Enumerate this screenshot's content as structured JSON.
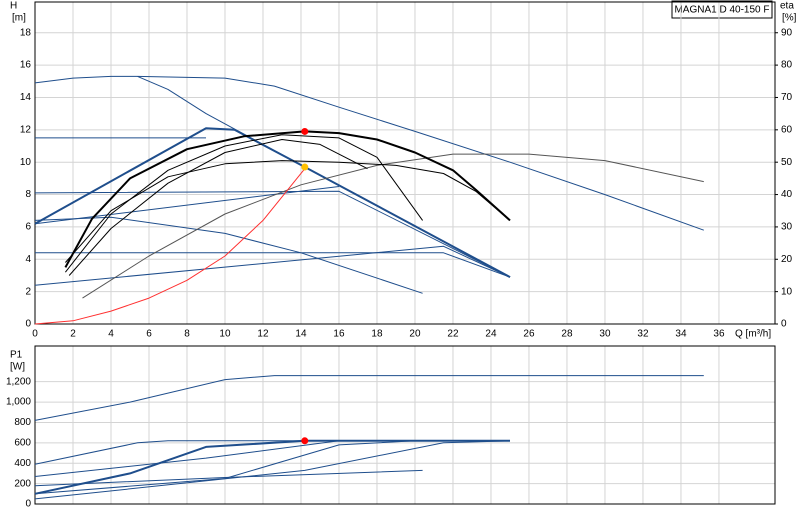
{
  "chart_data": [
    {
      "type": "line",
      "title": "MAGNA1 D 40-150 F",
      "ylabel": "H",
      "yunit": "[m]",
      "y2label": "eta",
      "y2unit": "[%]",
      "xlabel": "Q [m³/h]",
      "xlim": [
        0,
        38.95
      ],
      "ylim": [
        0,
        19.9
      ],
      "y2lim": [
        0,
        99.5
      ],
      "xticks": [
        0,
        2,
        4,
        6,
        8,
        10,
        12,
        14,
        16,
        18,
        20,
        22,
        24,
        26,
        28,
        30,
        32,
        34,
        36
      ],
      "yticks": [
        0,
        2,
        4,
        6,
        8,
        10,
        12,
        14,
        16,
        18
      ],
      "y2ticks": [
        0,
        10,
        20,
        30,
        40,
        50,
        60,
        70,
        80,
        90
      ],
      "grid": true,
      "series": [
        {
          "color": "#1f4e8c",
          "width": 1,
          "x": [
            0,
            2,
            4,
            5.4,
            10,
            12.6,
            16,
            20,
            25,
            30,
            35.2
          ],
          "values": [
            14.9,
            15.2,
            15.3,
            15.3,
            15.2,
            14.7,
            13.4,
            11.9,
            10,
            8,
            5.8
          ]
        },
        {
          "color": "#1f4e8c",
          "width": 1,
          "x": [
            5.4,
            7,
            9,
            14.2,
            25
          ],
          "values": [
            15.3,
            14.5,
            13,
            9.7,
            2.9
          ]
        },
        {
          "color": "#1f4e8c",
          "width": 2,
          "x": [
            0,
            9,
            10.5,
            14.2,
            25
          ],
          "values": [
            6.2,
            12.1,
            12,
            9.7,
            2.9
          ]
        },
        {
          "color": "#1f4e8c",
          "width": 1,
          "x": [
            0,
            9
          ],
          "values": [
            11.5,
            11.5
          ]
        },
        {
          "color": "#1f4e8c",
          "width": 1,
          "x": [
            0,
            16,
            25
          ],
          "values": [
            8.1,
            8.2,
            2.9
          ]
        },
        {
          "color": "#1f4e8c",
          "width": 1,
          "x": [
            0,
            16
          ],
          "values": [
            6.2,
            8.5
          ]
        },
        {
          "color": "#1f4e8c",
          "width": 1,
          "x": [
            0,
            21.5,
            25
          ],
          "values": [
            4.4,
            4.4,
            2.9
          ]
        },
        {
          "color": "#1f4e8c",
          "width": 1,
          "x": [
            0,
            21.5,
            25
          ],
          "values": [
            2.4,
            4.8,
            2.9
          ]
        },
        {
          "color": "#1f4e8c",
          "width": 1,
          "x": [
            0,
            4,
            10,
            14,
            20.4
          ],
          "values": [
            6.4,
            6.6,
            5.6,
            4.4,
            1.9
          ]
        },
        {
          "color": "#555555",
          "width": 1,
          "axis": "y2",
          "x": [
            2.5,
            6,
            10,
            14,
            18,
            22,
            26,
            30,
            35.2
          ],
          "values": [
            8,
            21,
            34,
            43,
            49,
            52.5,
            52.5,
            50.5,
            44
          ]
        },
        {
          "color": "#ff3030",
          "width": 1,
          "axis": "y2",
          "x": [
            0,
            2,
            4,
            6,
            8,
            10,
            12,
            14.2
          ],
          "values": [
            0,
            1,
            4,
            8,
            13.5,
            21,
            32,
            48
          ]
        },
        {
          "color": "#000000",
          "width": 2,
          "x": [
            1.6,
            3,
            5,
            8,
            11,
            14.2,
            16,
            18,
            20,
            22,
            23.2,
            25
          ],
          "values": [
            3.5,
            6.5,
            9,
            10.8,
            11.6,
            11.9,
            11.8,
            11.4,
            10.6,
            9.5,
            8.3,
            6.4
          ]
        },
        {
          "color": "#000000",
          "width": 1,
          "x": [
            1.6,
            4,
            7,
            10,
            13,
            16,
            18,
            20.4
          ],
          "values": [
            3.2,
            6.8,
            9.5,
            11,
            11.7,
            11.5,
            10.3,
            6.4
          ]
        },
        {
          "color": "#000000",
          "width": 1,
          "x": [
            1.6,
            4,
            7,
            10,
            13,
            16,
            19,
            21.5,
            23.2,
            25
          ],
          "values": [
            3.8,
            7,
            9.1,
            9.9,
            10.1,
            10,
            9.8,
            9.3,
            8.2,
            6.4
          ]
        },
        {
          "color": "#000000",
          "width": 1,
          "x": [
            1.8,
            4,
            7,
            10,
            13,
            15,
            17.5
          ],
          "values": [
            3.0,
            5.9,
            8.7,
            10.6,
            11.4,
            11.1,
            9.6
          ]
        }
      ],
      "markers": [
        {
          "x": 14.2,
          "y": 11.9,
          "color": "#ff0000"
        },
        {
          "x": 14.2,
          "y": 9.7,
          "color": "#ffc000"
        }
      ]
    },
    {
      "type": "line",
      "ylabel": "P1",
      "yunit": "[W]",
      "xlim": [
        0,
        38.95
      ],
      "ylim": [
        0,
        1550
      ],
      "xticks": [
        0,
        2,
        4,
        6,
        8,
        10,
        12,
        14,
        16,
        18,
        20,
        22,
        24,
        26,
        28,
        30,
        32,
        34,
        36
      ],
      "yticks": [
        0,
        200,
        400,
        600,
        800,
        {
          "value": 1000,
          "label": "1,000"
        },
        {
          "value": 1200,
          "label": "1,200"
        }
      ],
      "grid": true,
      "series": [
        {
          "color": "#1f4e8c",
          "width": 1,
          "x": [
            0,
            5,
            10,
            12.6,
            20,
            35.2
          ],
          "values": [
            820,
            1000,
            1220,
            1260,
            1260,
            1260
          ]
        },
        {
          "color": "#1f4e8c",
          "width": 2,
          "x": [
            0,
            5,
            9,
            14.2,
            25
          ],
          "values": [
            100,
            300,
            560,
            620,
            620
          ]
        },
        {
          "color": "#1f4e8c",
          "width": 1,
          "x": [
            0,
            5.4,
            7,
            25
          ],
          "values": [
            390,
            600,
            620,
            620
          ]
        },
        {
          "color": "#1f4e8c",
          "width": 1,
          "x": [
            0,
            9,
            16,
            25
          ],
          "values": [
            270,
            450,
            620,
            620
          ]
        },
        {
          "color": "#1f4e8c",
          "width": 1,
          "x": [
            0,
            10,
            16,
            20,
            25
          ],
          "values": [
            100,
            250,
            580,
            620,
            620
          ]
        },
        {
          "color": "#1f4e8c",
          "width": 1,
          "x": [
            0,
            10,
            20.4
          ],
          "values": [
            180,
            260,
            330
          ]
        },
        {
          "color": "#1f4e8c",
          "width": 1,
          "x": [
            0,
            14.2,
            21.5,
            25
          ],
          "values": [
            50,
            330,
            600,
            620
          ]
        }
      ],
      "markers": [
        {
          "x": 14.2,
          "y": 620,
          "color": "#ff0000"
        }
      ]
    }
  ]
}
